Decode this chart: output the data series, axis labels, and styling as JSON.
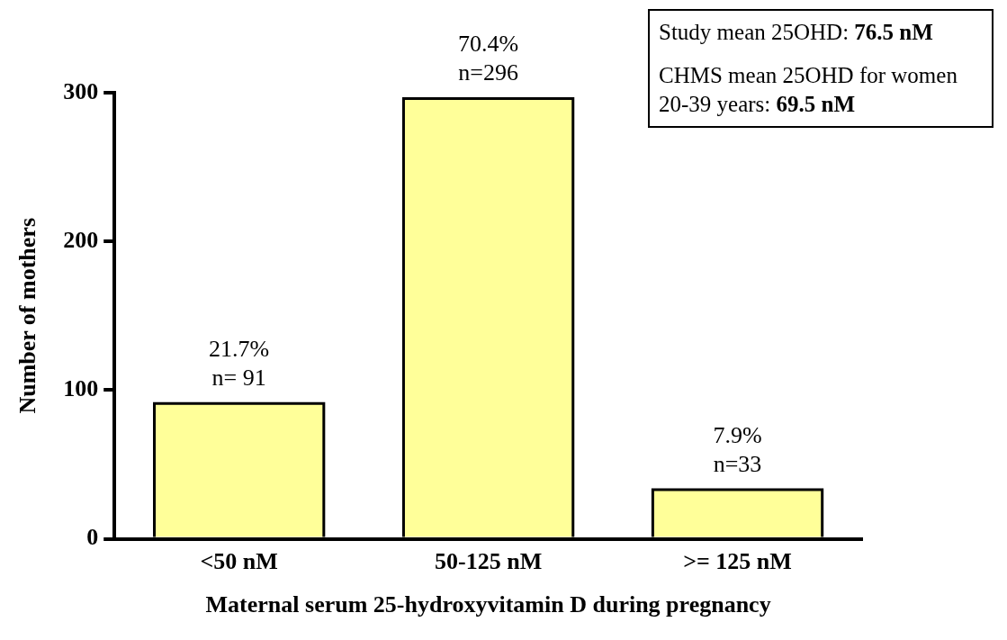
{
  "chart_data": {
    "type": "bar",
    "xlabel": "Maternal serum 25-hydroxyvitamin D during pregnancy",
    "ylabel": "Number of mothers",
    "categories": [
      "<50 nM",
      "50-125 nM",
      ">= 125 nM"
    ],
    "values": [
      91,
      296,
      33
    ],
    "color": "#ffff99",
    "value_labels": [
      "21.7%\nn= 91",
      "70.4%\nn=296",
      "7.9%\nn=33"
    ],
    "ylim": [
      0,
      300
    ],
    "yticks": [
      0,
      100,
      200,
      300
    ],
    "grid": false,
    "legend": false,
    "annotations": [
      "Study mean 25OHD: 76.5 nM",
      "CHMS mean 25OHD for women 20-39 years: 69.5 nM"
    ]
  }
}
